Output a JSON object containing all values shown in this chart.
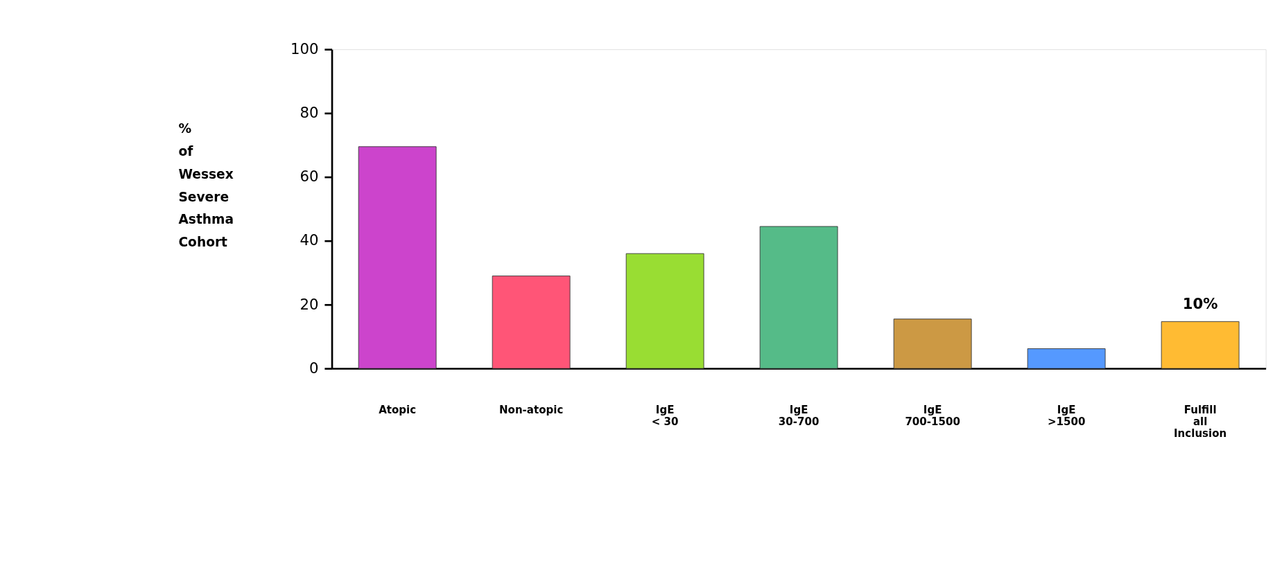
{
  "chart_data": {
    "type": "bar",
    "ylabel": "%\nof\nWessex\nSevere\nAsthma\nCohort",
    "categories": [
      "Atopic",
      "Non-atopic",
      "IgE\n< 30",
      "IgE\n30-700",
      "IgE\n700-1500",
      "IgE\n>1500",
      "Fulfill\nall\nInclusion"
    ],
    "values": [
      69.5,
      29,
      36,
      44.5,
      15.5,
      6.2,
      14.7
    ],
    "colors": [
      "#cc44cc",
      "#ff5577",
      "#99dd33",
      "#55bb88",
      "#cc9944",
      "#5599ff",
      "#ffbb33"
    ],
    "ylim": [
      0,
      100
    ],
    "yticks": [
      0,
      20,
      40,
      60,
      80,
      100
    ],
    "grid": false,
    "legend": false,
    "annotations": [
      {
        "text": "10%",
        "x": "Fulfill\nall\nInclusion",
        "y": 14.7
      }
    ]
  }
}
